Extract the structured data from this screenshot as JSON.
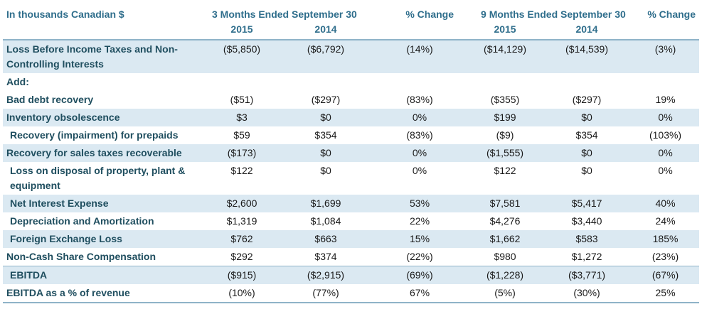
{
  "header": {
    "title": "In thousands Canadian $",
    "group3m": "3 Months Ended September 30",
    "pct1": "% Change",
    "group9m": "9 Months Ended September 30",
    "pct2": "% Change",
    "y2015a": "2015",
    "y2014a": "2014",
    "y2015b": "2015",
    "y2014b": "2014"
  },
  "rows": [
    {
      "label": "Loss Before Income Taxes and Non-Controlling Interests",
      "v": [
        "($5,850)",
        "($6,792)",
        "(14%)",
        "($14,129)",
        "($14,539)",
        "(3%)"
      ]
    },
    {
      "label": "Add:",
      "v": [
        "",
        "",
        "",
        "",
        "",
        ""
      ]
    },
    {
      "label": "Bad debt recovery",
      "v": [
        "($51)",
        "($297)",
        "(83%)",
        "($355)",
        "($297)",
        "19%"
      ]
    },
    {
      "label": "Inventory obsolescence",
      "v": [
        "$3",
        "$0",
        "0%",
        "$199",
        "$0",
        "0%"
      ]
    },
    {
      "label": "Recovery (impairment) for prepaids",
      "v": [
        "$59",
        "$354",
        "(83%)",
        "($9)",
        "$354",
        "(103%)"
      ]
    },
    {
      "label": "Recovery for sales taxes recoverable",
      "v": [
        "($173)",
        "$0",
        "0%",
        "($1,555)",
        "$0",
        "0%"
      ]
    },
    {
      "label": "Loss on disposal of property, plant & equipment",
      "v": [
        "$122",
        "$0",
        "0%",
        "$122",
        "$0",
        "0%"
      ]
    },
    {
      "label": "Net Interest Expense",
      "v": [
        "$2,600",
        "$1,699",
        "53%",
        "$7,581",
        "$5,417",
        "40%"
      ]
    },
    {
      "label": "Depreciation and Amortization",
      "v": [
        "$1,319",
        "$1,084",
        "22%",
        "$4,276",
        "$3,440",
        "24%"
      ]
    },
    {
      "label": "Foreign Exchange Loss",
      "v": [
        "$762",
        "$663",
        "15%",
        "$1,662",
        "$583",
        "185%"
      ]
    },
    {
      "label": "Non-Cash Share Compensation",
      "v": [
        "$292",
        "$374",
        "(22%)",
        "$980",
        "$1,272",
        "(23%)"
      ]
    },
    {
      "label": "EBITDA",
      "v": [
        "($915)",
        "($2,915)",
        "(69%)",
        "($1,228)",
        "($3,771)",
        "(67%)"
      ]
    },
    {
      "label": "EBITDA as a % of revenue",
      "v": [
        "(10%)",
        "(77%)",
        "67%",
        "(5%)",
        "(30%)",
        "25%"
      ]
    }
  ]
}
